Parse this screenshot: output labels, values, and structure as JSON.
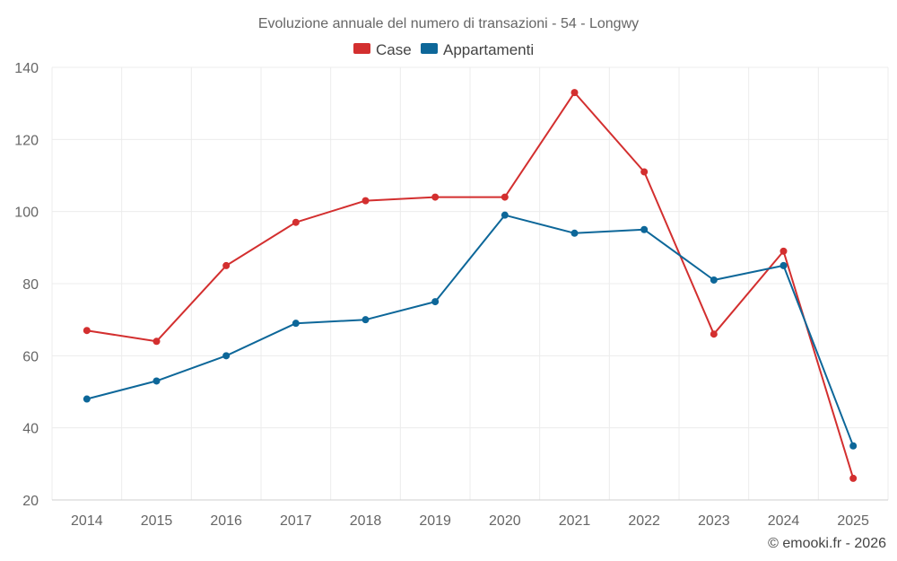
{
  "chart_data": {
    "type": "line",
    "title": "Evoluzione annuale del numero di transazioni - 54 - Longwy",
    "categories": [
      "2014",
      "2015",
      "2016",
      "2017",
      "2018",
      "2019",
      "2020",
      "2021",
      "2022",
      "2023",
      "2024",
      "2025"
    ],
    "series": [
      {
        "name": "Case",
        "color": "#d32f2f",
        "values": [
          67,
          64,
          85,
          97,
          103,
          104,
          104,
          133,
          111,
          66,
          89,
          26
        ]
      },
      {
        "name": "Appartamenti",
        "color": "#0d6799",
        "values": [
          48,
          53,
          60,
          69,
          70,
          75,
          99,
          94,
          95,
          81,
          85,
          35
        ]
      }
    ],
    "xlabel": "",
    "ylabel": "",
    "ylim": [
      20,
      140
    ],
    "yticks": [
      20,
      40,
      60,
      80,
      100,
      120,
      140
    ],
    "grid": true,
    "legend_position": "top-center"
  },
  "credit": "© emooki.fr - 2026"
}
